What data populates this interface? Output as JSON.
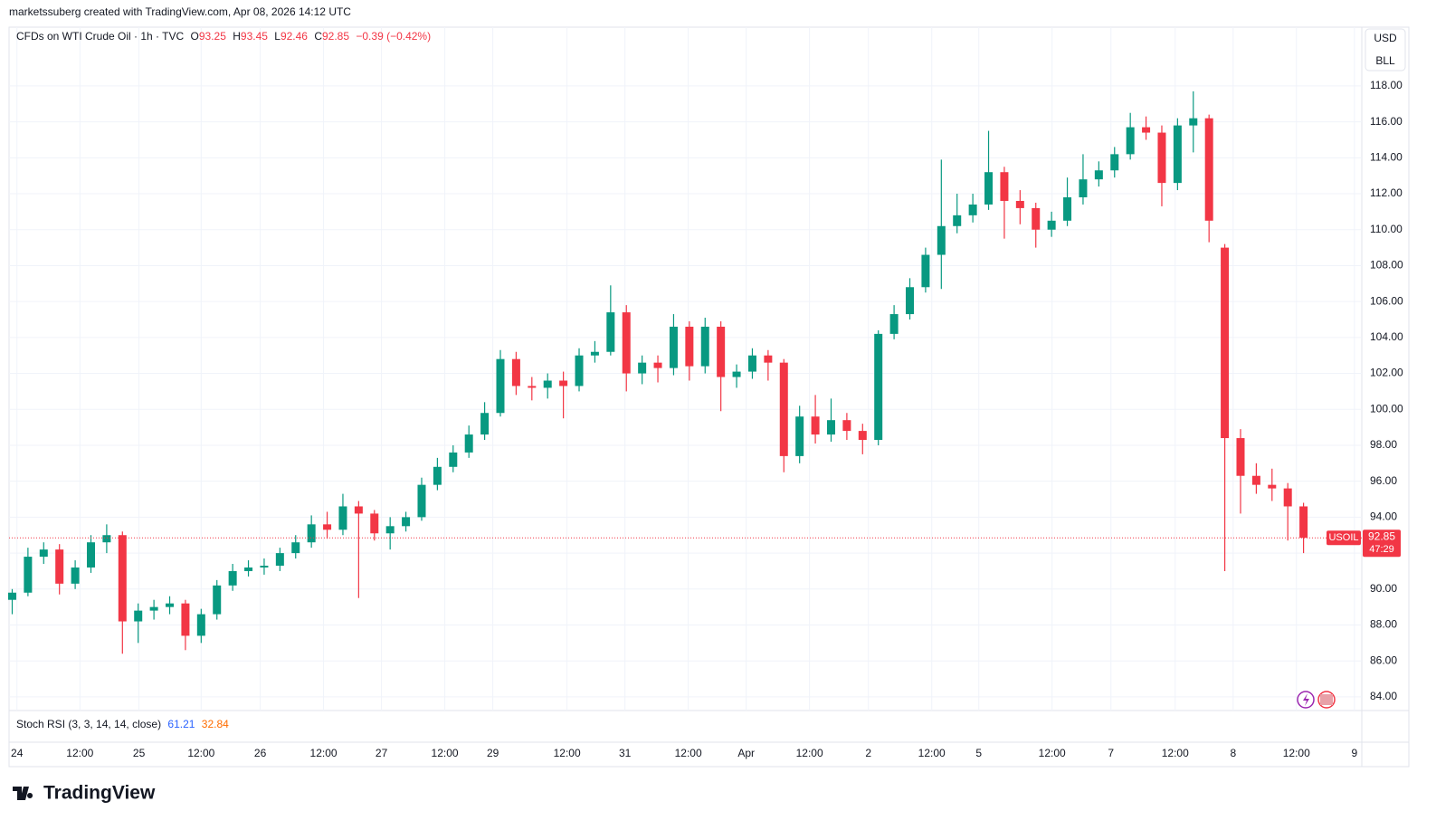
{
  "attribution": "marketssuberg created with TradingView.com, Apr 08, 2026 14:12 UTC",
  "brand": "TradingView",
  "chart_data": {
    "type": "candlestick",
    "legend": {
      "symbol": "CFDs on WTI Crude Oil · 1h · TVC",
      "o": "O",
      "open": 93.25,
      "h": "H",
      "high": 93.45,
      "l": "L",
      "low": 92.46,
      "c": "C",
      "close": 92.85,
      "change": "−0.39 (−0.42%)"
    },
    "currency": "USD",
    "unit": "BLL",
    "indicator": {
      "name": "Stoch RSI (3, 3, 14, 14, close)",
      "k": 61.21,
      "d": 32.84,
      "k_color": "#2962ff",
      "d_color": "#ff6d00"
    },
    "last_symbol": "USOIL",
    "last_price": 92.85,
    "countdown": "47:29",
    "up_color": "#089981",
    "down_color": "#f23645",
    "grid": true,
    "ylim": [
      83.24,
      121.27
    ],
    "yticks": [
      {
        "value": 84,
        "label": "84.00"
      },
      {
        "value": 86,
        "label": "86.00"
      },
      {
        "value": 88,
        "label": "88.00"
      },
      {
        "value": 90,
        "label": "90.00"
      },
      {
        "value": 92,
        "label": "92.00"
      },
      {
        "value": 94,
        "label": "94.00"
      },
      {
        "value": 96,
        "label": "96.00"
      },
      {
        "value": 98,
        "label": "98.00"
      },
      {
        "value": 100,
        "label": "100.00"
      },
      {
        "value": 102,
        "label": "102.00"
      },
      {
        "value": 104,
        "label": "104.00"
      },
      {
        "value": 106,
        "label": "106.00"
      },
      {
        "value": 108,
        "label": "108.00"
      },
      {
        "value": 110,
        "label": "110.00"
      },
      {
        "value": 112,
        "label": "112.00"
      },
      {
        "value": 114,
        "label": "114.00"
      },
      {
        "value": 116,
        "label": "116.00"
      },
      {
        "value": 118,
        "label": "118.00"
      }
    ],
    "xlim": [
      -0.2,
      85.7
    ],
    "xticks": [
      {
        "value": 0.3,
        "label": "24"
      },
      {
        "value": 4.3,
        "label": "12:00"
      },
      {
        "value": 8.05,
        "label": "25"
      },
      {
        "value": 12,
        "label": "12:00"
      },
      {
        "value": 15.75,
        "label": "26"
      },
      {
        "value": 19.77,
        "label": "12:00"
      },
      {
        "value": 23.45,
        "label": "27"
      },
      {
        "value": 27.47,
        "label": "12:00"
      },
      {
        "value": 30.52,
        "label": "29"
      },
      {
        "value": 35.23,
        "label": "12:00"
      },
      {
        "value": 38.91,
        "label": "31"
      },
      {
        "value": 42.93,
        "label": "12:00"
      },
      {
        "value": 46.61,
        "label": "Apr"
      },
      {
        "value": 50.63,
        "label": "12:00"
      },
      {
        "value": 54.37,
        "label": "2"
      },
      {
        "value": 58.39,
        "label": "12:00"
      },
      {
        "value": 61.38,
        "label": "5"
      },
      {
        "value": 66.03,
        "label": "12:00"
      },
      {
        "value": 69.77,
        "label": "7"
      },
      {
        "value": 73.85,
        "label": "12:00"
      },
      {
        "value": 77.53,
        "label": "8"
      },
      {
        "value": 81.55,
        "label": "12:00"
      },
      {
        "value": 85.23,
        "label": "9"
      }
    ],
    "open": [
      89.4,
      89.8,
      91.8,
      92.2,
      90.3,
      91.2,
      92.6,
      93.0,
      88.2,
      88.8,
      89.0,
      89.2,
      87.4,
      88.6,
      90.2,
      91.0,
      91.2,
      91.3,
      92.0,
      92.6,
      93.6,
      93.3,
      94.6,
      94.2,
      93.1,
      93.5,
      94.0,
      95.8,
      96.8,
      97.6,
      98.6,
      99.8,
      102.8,
      101.3,
      101.2,
      101.6,
      101.3,
      103.0,
      103.2,
      105.4,
      102.0,
      102.6,
      102.3,
      104.6,
      102.4,
      104.6,
      101.8,
      102.1,
      103.0,
      102.6,
      97.4,
      99.6,
      98.6,
      99.4,
      98.8,
      98.3,
      104.2,
      105.3,
      106.8,
      108.6,
      110.2,
      110.8,
      111.4,
      113.2,
      111.6,
      111.2,
      110.0,
      110.5,
      111.8,
      112.8,
      113.3,
      114.2,
      115.7,
      115.4,
      112.6,
      115.8,
      116.2,
      109.0,
      98.4,
      96.3,
      95.8,
      95.6,
      94.6
    ],
    "high": [
      90.0,
      92.3,
      92.6,
      92.5,
      91.6,
      93.0,
      93.6,
      93.2,
      89.2,
      89.4,
      89.6,
      89.4,
      88.9,
      90.5,
      91.4,
      91.6,
      91.7,
      92.3,
      93.0,
      94.1,
      94.3,
      95.3,
      94.9,
      94.4,
      94.0,
      94.3,
      96.2,
      97.3,
      98.0,
      99.1,
      100.4,
      103.3,
      103.2,
      101.8,
      102.0,
      102.1,
      103.4,
      103.8,
      106.9,
      105.8,
      103.0,
      103.0,
      105.3,
      104.9,
      105.1,
      104.9,
      102.5,
      103.4,
      103.3,
      102.8,
      100.2,
      100.8,
      100.6,
      99.8,
      99.2,
      104.4,
      105.8,
      107.3,
      109.0,
      113.9,
      112.0,
      112.0,
      115.5,
      113.5,
      112.2,
      111.5,
      111.0,
      112.9,
      114.2,
      113.8,
      114.6,
      116.5,
      116.3,
      115.8,
      116.2,
      117.7,
      116.4,
      109.2,
      98.9,
      97.0,
      96.7,
      95.9,
      94.8
    ],
    "low": [
      88.6,
      89.6,
      91.4,
      89.7,
      90.0,
      90.9,
      92.0,
      86.4,
      87.0,
      88.3,
      88.6,
      86.6,
      87.0,
      88.3,
      89.9,
      90.7,
      90.8,
      91.0,
      91.7,
      92.3,
      92.8,
      93.0,
      89.5,
      92.7,
      92.2,
      93.2,
      93.8,
      95.5,
      96.5,
      97.3,
      98.3,
      99.6,
      100.8,
      100.5,
      100.6,
      99.5,
      101.0,
      102.6,
      103.0,
      101.0,
      101.4,
      101.5,
      101.9,
      101.6,
      102.0,
      99.9,
      101.2,
      101.7,
      101.6,
      96.5,
      97.0,
      98.1,
      98.2,
      98.3,
      97.5,
      98.0,
      103.9,
      105.0,
      106.5,
      106.7,
      109.8,
      110.4,
      111.1,
      109.5,
      110.3,
      109.0,
      109.6,
      110.2,
      111.4,
      112.4,
      112.9,
      113.9,
      115.0,
      111.3,
      112.2,
      114.3,
      109.3,
      91.0,
      94.2,
      95.3,
      94.9,
      92.7,
      92.0
    ],
    "close": [
      89.8,
      91.8,
      92.2,
      90.3,
      91.2,
      92.6,
      93.0,
      88.2,
      88.8,
      89.0,
      89.2,
      87.4,
      88.6,
      90.2,
      91.0,
      91.2,
      91.3,
      92.0,
      92.6,
      93.6,
      93.3,
      94.6,
      94.2,
      93.1,
      93.5,
      94.0,
      95.8,
      96.8,
      97.6,
      98.6,
      99.8,
      102.8,
      101.3,
      101.2,
      101.6,
      101.3,
      103.0,
      103.2,
      105.4,
      102.0,
      102.6,
      102.3,
      104.6,
      102.4,
      104.6,
      101.8,
      102.1,
      103.0,
      102.6,
      97.4,
      99.6,
      98.6,
      99.4,
      98.8,
      98.3,
      104.2,
      105.3,
      106.8,
      108.6,
      110.2,
      110.8,
      111.4,
      113.2,
      111.6,
      111.2,
      110.0,
      110.5,
      111.8,
      112.8,
      113.3,
      114.2,
      115.7,
      115.4,
      112.6,
      115.8,
      116.2,
      110.5,
      98.4,
      96.3,
      95.8,
      95.6,
      94.6,
      92.85
    ]
  }
}
